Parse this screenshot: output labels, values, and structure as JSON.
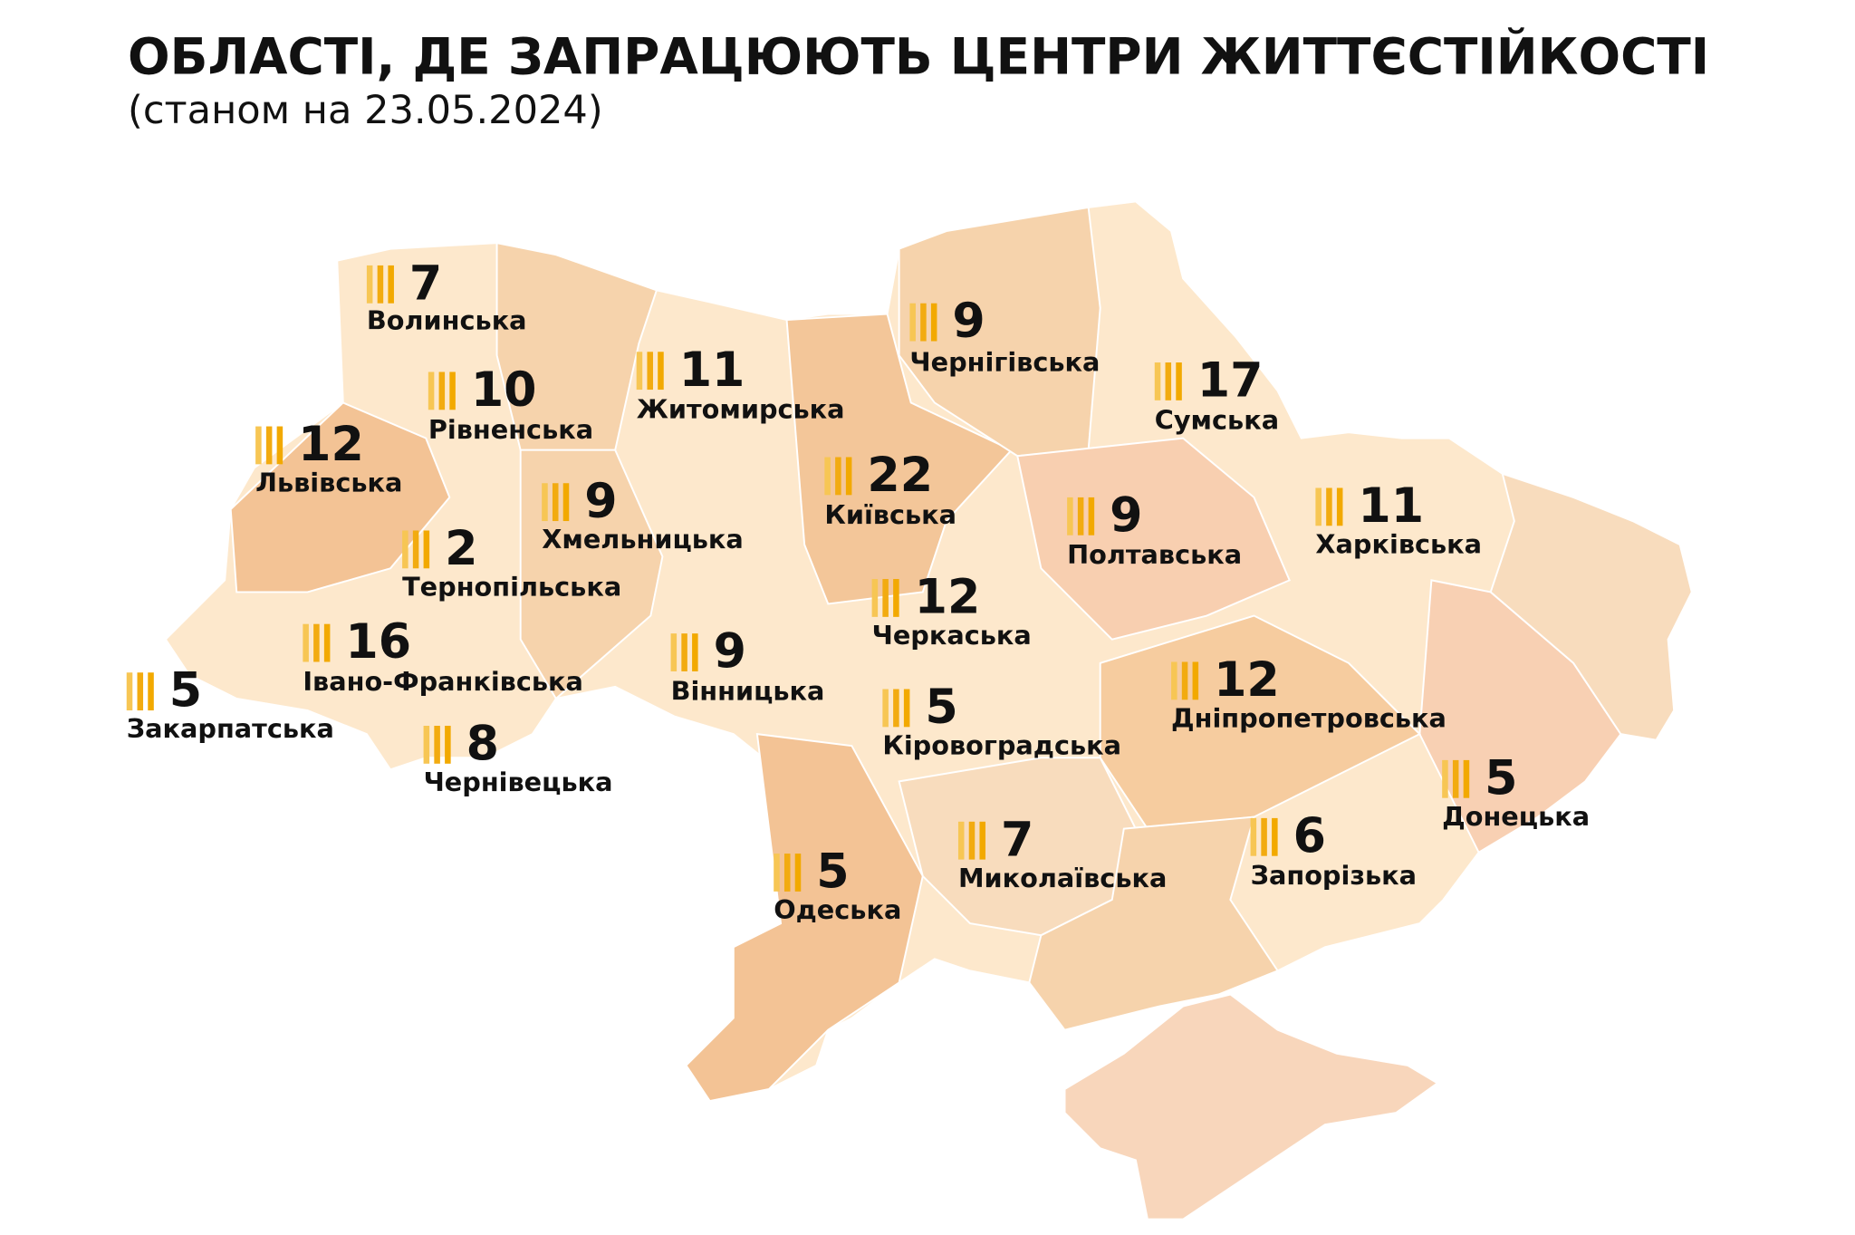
{
  "title": "ОБЛАСТІ, ДЕ ЗАПРАЦЮЮТЬ ЦЕНТРИ ЖИТТЄСТІЙКОСТІ",
  "subtitle": "(станом на 23.05.2024)",
  "regions": [
    {
      "name": "Волинська",
      "count": 7
    },
    {
      "name": "Рівненська",
      "count": 10
    },
    {
      "name": "Львівська",
      "count": 12
    },
    {
      "name": "Тернопільська",
      "count": 2
    },
    {
      "name": "Хмельницька",
      "count": 9
    },
    {
      "name": "Житомирська",
      "count": 11
    },
    {
      "name": "Київська",
      "count": 22
    },
    {
      "name": "Чернігівська",
      "count": 9
    },
    {
      "name": "Сумська",
      "count": 17
    },
    {
      "name": "Полтавська",
      "count": 9
    },
    {
      "name": "Харківська",
      "count": 11
    },
    {
      "name": "Черкаська",
      "count": 12
    },
    {
      "name": "Вінницька",
      "count": 9
    },
    {
      "name": "Івано-Франківська",
      "count": 16
    },
    {
      "name": "Закарпатська",
      "count": 5
    },
    {
      "name": "Чернівецька",
      "count": 8
    },
    {
      "name": "Кіровоградська",
      "count": 5
    },
    {
      "name": "Дніпропетровська",
      "count": 12
    },
    {
      "name": "Донецька",
      "count": 5
    },
    {
      "name": "Запорізька",
      "count": 6
    },
    {
      "name": "Миколаївська",
      "count": 7
    },
    {
      "name": "Одеська",
      "count": 5
    }
  ]
}
